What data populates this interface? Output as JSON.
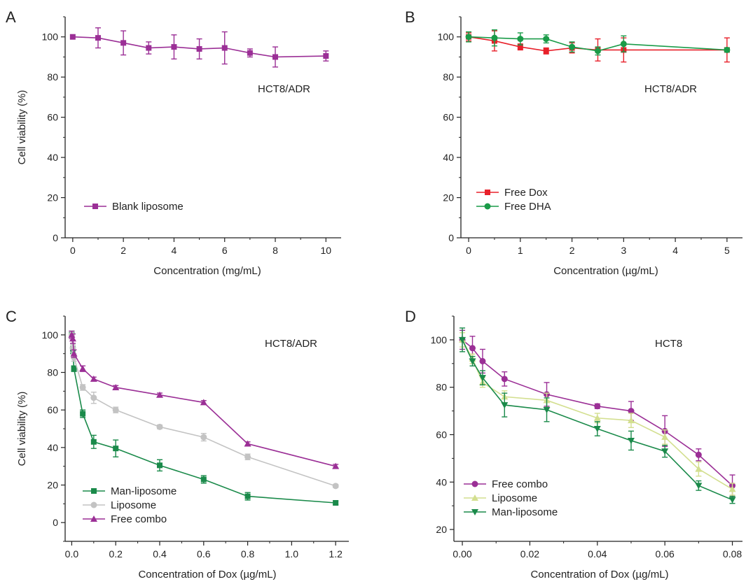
{
  "chart_data": [
    {
      "panel": "A",
      "type": "line",
      "xlabel": "Concentration (mg/mL)",
      "ylabel": "Cell viability (%)",
      "annotation": "HCT8/ADR",
      "xlim": [
        -0.3,
        10.6
      ],
      "ylim": [
        0,
        110
      ],
      "xticks": [
        0,
        2,
        4,
        6,
        8,
        10
      ],
      "yticks": [
        0,
        20,
        40,
        60,
        80,
        100
      ],
      "legend_position": "bottom-left",
      "colors": {
        "Blank liposome": "#9b2f96"
      },
      "series": [
        {
          "name": "Blank liposome",
          "marker": "square",
          "x": [
            0,
            1,
            2,
            3,
            4,
            5,
            6,
            7,
            8,
            10
          ],
          "y": [
            100,
            99.5,
            97,
            94.5,
            95,
            94,
            94.5,
            92,
            90,
            90.5
          ],
          "err": [
            0,
            5,
            6,
            3,
            6,
            5,
            8,
            2,
            5,
            2.5
          ]
        }
      ]
    },
    {
      "panel": "B",
      "type": "line",
      "xlabel": "Concentration (µg/mL)",
      "ylabel": "",
      "annotation": "HCT8/ADR",
      "xlim": [
        -0.15,
        5.3
      ],
      "ylim": [
        0,
        110
      ],
      "xticks": [
        0,
        1,
        2,
        3,
        4,
        5
      ],
      "yticks": [
        0,
        20,
        40,
        60,
        80,
        100
      ],
      "legend_position": "bottom-left",
      "colors": {
        "Free Dox": "#e8202a",
        "Free DHA": "#1a9b48"
      },
      "series": [
        {
          "name": "Free Dox",
          "marker": "square",
          "x": [
            0,
            0.5,
            1,
            1.5,
            2,
            2.5,
            3,
            5
          ],
          "y": [
            100,
            98,
            95,
            93,
            94.5,
            93.5,
            93.5,
            93.5
          ],
          "err": [
            2,
            5,
            1.5,
            1.5,
            2.5,
            5.5,
            6,
            6
          ]
        },
        {
          "name": "Free DHA",
          "marker": "circle",
          "x": [
            0,
            0.5,
            1,
            1.5,
            2,
            2.5,
            3,
            5
          ],
          "y": [
            100,
            99.5,
            99,
            99,
            95,
            93,
            96.5,
            93.5
          ],
          "err": [
            2.5,
            4,
            3,
            2,
            2.5,
            2,
            4,
            1
          ]
        }
      ]
    },
    {
      "panel": "C",
      "type": "line",
      "xlabel": "Concentration of Dox (µg/mL)",
      "ylabel": "Cell viability (%)",
      "annotation": "HCT8/ADR",
      "xlim": [
        -0.03,
        1.26
      ],
      "ylim": [
        -10,
        110
      ],
      "xticks": [
        0.0,
        0.2,
        0.4,
        0.6,
        0.8,
        1.0,
        1.2
      ],
      "xtick_labels": [
        "0.0",
        "0.2",
        "0.4",
        "0.6",
        "0.8",
        "1.0",
        "1.2"
      ],
      "yticks": [
        0,
        20,
        40,
        60,
        80,
        100
      ],
      "legend_position": "bottom-left",
      "colors": {
        "Man-liposome": "#1a8a4a",
        "Liposome": "#c3c3c3",
        "Free combo": "#9b2f96"
      },
      "series": [
        {
          "name": "Man-liposome",
          "marker": "square",
          "x": [
            0,
            0.005,
            0.01,
            0.05,
            0.1,
            0.2,
            0.4,
            0.6,
            0.8,
            1.2
          ],
          "y": [
            100,
            92,
            82,
            58,
            43,
            39.5,
            30.5,
            23,
            14,
            10.5
          ],
          "err": [
            2,
            2,
            1.5,
            2,
            3.5,
            4.5,
            3,
            2,
            2,
            1
          ]
        },
        {
          "name": "Liposome",
          "marker": "circle",
          "x": [
            0,
            0.005,
            0.01,
            0.05,
            0.1,
            0.2,
            0.4,
            0.6,
            0.8,
            1.2
          ],
          "y": [
            100,
            93,
            88,
            72,
            66.5,
            60,
            51,
            45.5,
            35,
            19.5
          ],
          "err": [
            2,
            2,
            2,
            1.5,
            3,
            1.5,
            1,
            2,
            1.5,
            0.8
          ]
        },
        {
          "name": "Free combo",
          "marker": "triangle",
          "x": [
            0,
            0.005,
            0.01,
            0.05,
            0.1,
            0.2,
            0.4,
            0.6,
            0.8,
            1.2
          ],
          "y": [
            100,
            98,
            90,
            82,
            76.5,
            72,
            68,
            64,
            42,
            30
          ],
          "err": [
            2,
            2.5,
            2,
            1.5,
            1,
            1,
            1,
            1,
            1,
            1
          ]
        }
      ]
    },
    {
      "panel": "D",
      "type": "line",
      "xlabel": "Concentration of Dox (µg/mL)",
      "ylabel": "",
      "annotation": "HCT8",
      "xlim": [
        -0.0025,
        0.083
      ],
      "ylim": [
        15,
        110
      ],
      "xticks": [
        0.0,
        0.02,
        0.04,
        0.06,
        0.08
      ],
      "xtick_labels": [
        "0.00",
        "0.02",
        "0.04",
        "0.06",
        "0.08"
      ],
      "yticks": [
        20,
        40,
        60,
        80,
        100
      ],
      "legend_position": "bottom-left",
      "colors": {
        "Free combo": "#9b2f96",
        "Liposome": "#d3df8f",
        "Man-liposome": "#1a8a4a"
      },
      "series": [
        {
          "name": "Free combo",
          "marker": "circle",
          "x": [
            0,
            0.003,
            0.006,
            0.0125,
            0.025,
            0.04,
            0.05,
            0.06,
            0.07,
            0.08
          ],
          "y": [
            100,
            96.5,
            91,
            83.5,
            77,
            72,
            70,
            61.5,
            51.5,
            38.5
          ],
          "err": [
            4,
            5,
            5,
            3,
            5,
            1,
            4,
            6.5,
            2.5,
            4.5
          ]
        },
        {
          "name": "Liposome",
          "marker": "triangle",
          "x": [
            0,
            0.003,
            0.006,
            0.0125,
            0.025,
            0.04,
            0.05,
            0.06,
            0.07,
            0.08
          ],
          "y": [
            100,
            92,
            82,
            76,
            74.5,
            67,
            66,
            59,
            45.5,
            37
          ],
          "err": [
            3,
            2,
            2,
            2.5,
            3,
            2,
            3,
            3,
            3,
            2.5
          ]
        },
        {
          "name": "Man-liposome",
          "marker": "triangle-down",
          "x": [
            0,
            0.003,
            0.006,
            0.0125,
            0.025,
            0.04,
            0.05,
            0.06,
            0.07,
            0.08
          ],
          "y": [
            100,
            91,
            84,
            72.5,
            70.5,
            62.5,
            57.5,
            53,
            38.5,
            32.5
          ],
          "err": [
            5,
            2,
            3,
            5,
            5,
            3,
            4,
            2.5,
            2,
            1.5
          ]
        }
      ]
    }
  ]
}
